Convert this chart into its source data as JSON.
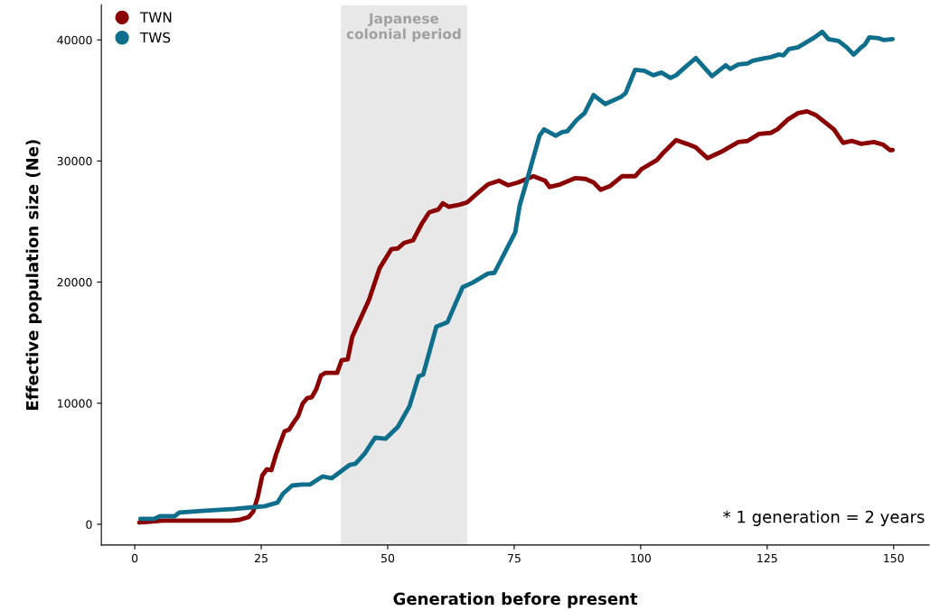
{
  "chart_data": {
    "type": "line",
    "xlabel": "Generation before present",
    "ylabel": "Effective population size (Ne)",
    "xlim": [
      -6.6,
      157
    ],
    "ylim": [
      -1710,
      42890
    ],
    "xticks": [
      0,
      25,
      50,
      75,
      100,
      125,
      150
    ],
    "yticks": [
      0,
      10000,
      20000,
      30000,
      40000
    ],
    "grid": false,
    "legend": "top left",
    "line_style": "solid",
    "bands": [
      {
        "axis": "x",
        "from": 40.7,
        "to": 65.7,
        "label": "Japanese\ncolonial period",
        "color": "#e8e8e8"
      }
    ],
    "annotations": [
      "* 1 generation = 2 years"
    ],
    "series": [
      {
        "name": "TWN",
        "color": "#8b0000",
        "x": [
          0.9,
          2.9,
          5.5,
          8.2,
          13.6,
          18.9,
          20.7,
          22.5,
          23.4,
          24.3,
          25.2,
          26.1,
          27.0,
          27.9,
          28.8,
          29.6,
          30.5,
          31.4,
          32.3,
          33.2,
          34.1,
          35.0,
          35.9,
          36.8,
          37.7,
          40.0,
          40.9,
          42.1,
          43.0,
          44.3,
          46.3,
          48.4,
          50.7,
          52.0,
          53.2,
          55.0,
          56.8,
          58.2,
          60.0,
          60.9,
          62.1,
          63.9,
          65.7,
          67.5,
          69.8,
          72.0,
          73.8,
          75.7,
          78.8,
          81.1,
          82.0,
          84.1,
          87.1,
          89.1,
          90.7,
          92.1,
          93.9,
          96.3,
          98.9,
          100.2,
          103.2,
          104.3,
          107.0,
          109.1,
          110.9,
          113.2,
          115.9,
          119.3,
          121.1,
          123.4,
          125.7,
          127.0,
          129.1,
          131.1,
          132.9,
          134.6,
          136.4,
          138.2,
          140.0,
          141.8,
          143.6,
          146.1,
          147.9,
          149.3,
          149.8
        ],
        "values": [
          150,
          220,
          300,
          300,
          300,
          300,
          370,
          600,
          1040,
          2230,
          4020,
          4540,
          4470,
          5730,
          6780,
          7670,
          7820,
          8410,
          8940,
          9980,
          10420,
          10500,
          11170,
          12290,
          12510,
          12510,
          13550,
          13630,
          15490,
          16680,
          18540,
          21150,
          22710,
          22780,
          23230,
          23450,
          24870,
          25760,
          25990,
          26510,
          26210,
          26360,
          26580,
          27250,
          28070,
          28370,
          28000,
          28220,
          28740,
          28370,
          27850,
          28070,
          28590,
          28520,
          28220,
          27620,
          27920,
          28740,
          28740,
          29340,
          30080,
          30600,
          31720,
          31420,
          31120,
          30230,
          30750,
          31570,
          31650,
          32240,
          32320,
          32610,
          33430,
          33950,
          34100,
          33800,
          33210,
          32610,
          31500,
          31650,
          31420,
          31570,
          31350,
          30900,
          30900
        ]
      },
      {
        "name": "TWS",
        "color": "#0e6e8c",
        "x": [
          1.1,
          3.8,
          5.0,
          7.9,
          8.8,
          13.9,
          19.8,
          23.4,
          25.7,
          28.2,
          29.3,
          31.1,
          32.9,
          34.6,
          37.1,
          38.9,
          42.5,
          43.6,
          45.4,
          47.5,
          49.6,
          52.0,
          54.3,
          56.1,
          57.0,
          59.6,
          61.8,
          64.8,
          66.8,
          69.8,
          71.1,
          73.4,
          75.2,
          76.1,
          77.5,
          80.0,
          80.9,
          83.2,
          84.5,
          85.5,
          87.3,
          88.9,
          90.7,
          93.0,
          96.1,
          97.0,
          98.9,
          100.7,
          102.5,
          104.1,
          105.9,
          107.0,
          108.8,
          110.9,
          114.1,
          116.8,
          117.7,
          119.3,
          121.1,
          122.1,
          124.6,
          125.7,
          127.3,
          128.2,
          129.3,
          131.1,
          134.1,
          135.9,
          137.1,
          139.1,
          140.7,
          142.1,
          143.4,
          144.3,
          145.2,
          147.1,
          148.0,
          149.8
        ],
        "values": [
          450,
          450,
          670,
          670,
          970,
          1120,
          1270,
          1410,
          1490,
          1790,
          2530,
          3200,
          3280,
          3280,
          3950,
          3800,
          4910,
          4990,
          5810,
          7150,
          7070,
          8040,
          9750,
          12210,
          12360,
          16310,
          16680,
          19580,
          19960,
          20700,
          20770,
          22640,
          24120,
          26360,
          28370,
          32090,
          32610,
          32090,
          32390,
          32460,
          33360,
          33950,
          35440,
          34700,
          35290,
          35590,
          37530,
          37450,
          37080,
          37300,
          36860,
          37080,
          37750,
          38500,
          37010,
          37900,
          37600,
          37970,
          38050,
          38270,
          38500,
          38570,
          38790,
          38720,
          39240,
          39390,
          40130,
          40660,
          40060,
          39910,
          39390,
          38790,
          39310,
          39610,
          40210,
          40130,
          39990,
          40060
        ]
      }
    ]
  }
}
